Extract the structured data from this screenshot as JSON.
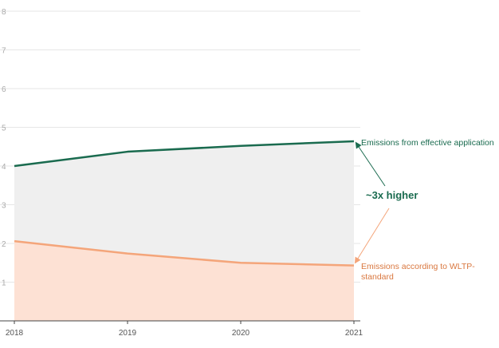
{
  "chart_data": {
    "type": "area",
    "x": [
      2018,
      2019,
      2020,
      2021
    ],
    "ylim": [
      0,
      8
    ],
    "yticks": [
      1,
      2,
      3,
      4,
      5,
      6,
      7,
      8
    ],
    "series": [
      {
        "name": "Emissions from effective application",
        "values": [
          4.0,
          4.37,
          4.52,
          4.64
        ],
        "color": "#1a6b4f"
      },
      {
        "name": "Emissions according to WLTP-standard",
        "values": [
          2.06,
          1.74,
          1.5,
          1.43
        ],
        "color": "#f4a57a"
      }
    ],
    "annotation": "~3x higher",
    "colors": {
      "upper_fill": "#efefef",
      "lower_fill": "#fde1d4",
      "grid": "#e6e6e6",
      "upper_label": "#1a6b4f",
      "lower_label": "#d9773f"
    },
    "grid": true
  },
  "labels": {
    "upper_series": "Emissions from effective application",
    "lower_series_line1": "Emissions according to WLTP-",
    "lower_series_line2": "standard",
    "callout": "~3x higher"
  }
}
